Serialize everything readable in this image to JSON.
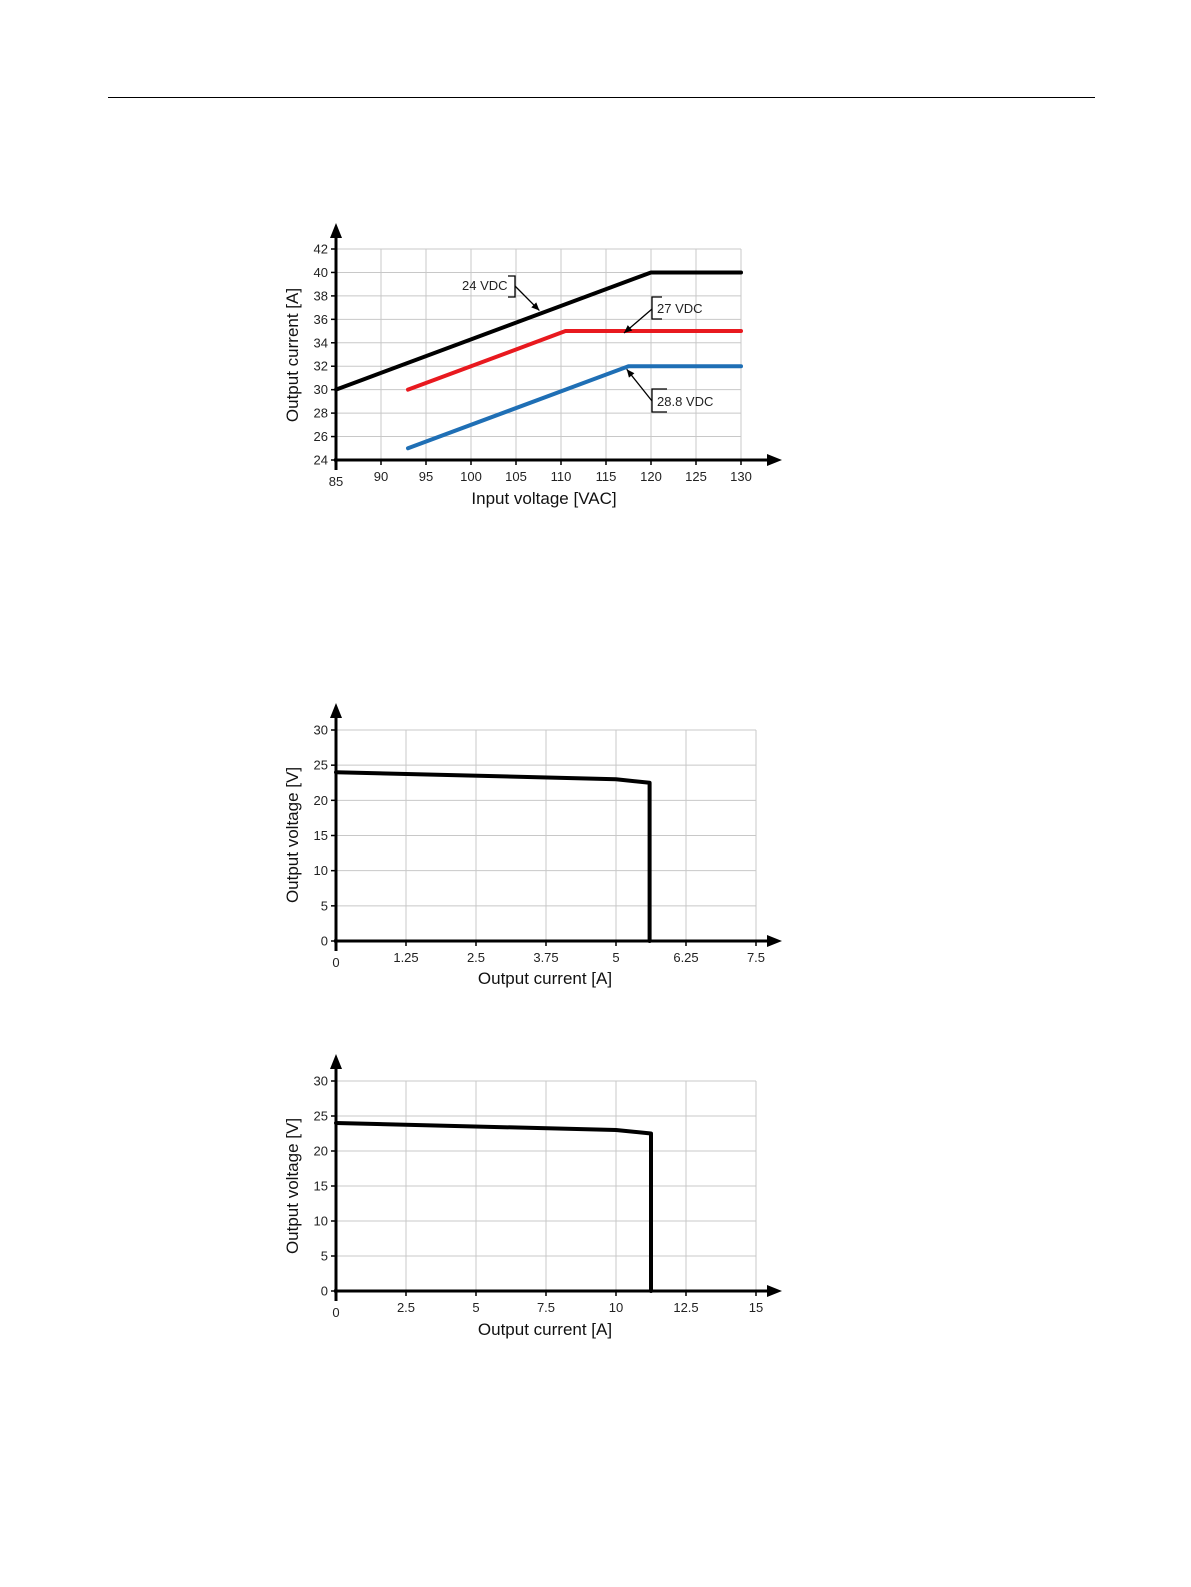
{
  "chart_data": [
    {
      "type": "line",
      "xlabel": "Input voltage [VAC]",
      "ylabel": "Output current [A]",
      "xlim": [
        85,
        130
      ],
      "ylim": [
        24,
        42
      ],
      "xticks": [
        85,
        90,
        95,
        100,
        105,
        110,
        115,
        120,
        125,
        130
      ],
      "yticks": [
        24,
        26,
        28,
        30,
        32,
        34,
        36,
        38,
        40,
        42
      ],
      "grid": true,
      "series": [
        {
          "name": "24 VDC",
          "color": "#000000",
          "points": [
            [
              85,
              30
            ],
            [
              120,
              40
            ],
            [
              130,
              40
            ]
          ]
        },
        {
          "name": "27 VDC",
          "color": "#e8191f",
          "points": [
            [
              93,
              30
            ],
            [
              110.5,
              35
            ],
            [
              130,
              35
            ]
          ]
        },
        {
          "name": "28.8 VDC",
          "color": "#1f6fb5",
          "points": [
            [
              93,
              25
            ],
            [
              117.5,
              32
            ],
            [
              130,
              32
            ]
          ]
        }
      ]
    },
    {
      "type": "line",
      "xlabel": "Output current [A]",
      "ylabel": "Output voltage [V]",
      "xlim": [
        0,
        7.5
      ],
      "ylim": [
        0,
        30
      ],
      "xticks": [
        "0",
        "1.25",
        "2.5",
        "3.75",
        "5",
        "6.25",
        "7.5"
      ],
      "yticks": [
        0,
        5,
        10,
        15,
        20,
        25,
        30
      ],
      "grid": true,
      "series": [
        {
          "color": "#000000",
          "points": [
            [
              0,
              24
            ],
            [
              5,
              23
            ],
            [
              5.6,
              22.5
            ],
            [
              5.6,
              0
            ]
          ]
        }
      ]
    },
    {
      "type": "line",
      "xlabel": "Output current [A]",
      "ylabel": "Output voltage [V]",
      "xlim": [
        0,
        15
      ],
      "ylim": [
        0,
        30
      ],
      "xticks": [
        "0",
        "2.5",
        "5",
        "7.5",
        "10",
        "12.5",
        "15"
      ],
      "yticks": [
        0,
        5,
        10,
        15,
        20,
        25,
        30
      ],
      "grid": true,
      "series": [
        {
          "color": "#000000",
          "points": [
            [
              0,
              24
            ],
            [
              10,
              23
            ],
            [
              11.25,
              22.5
            ],
            [
              11.25,
              0
            ]
          ]
        }
      ]
    }
  ]
}
